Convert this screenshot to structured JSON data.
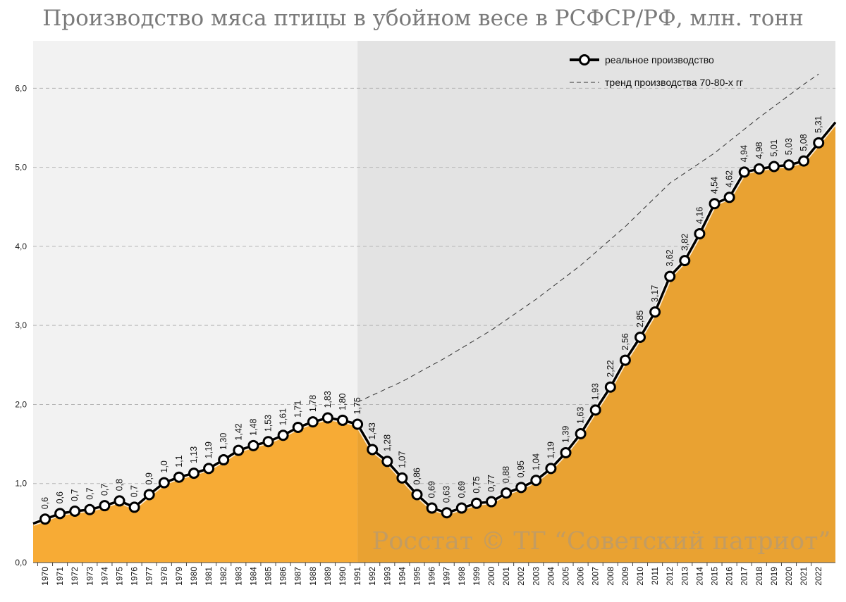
{
  "chart_data": {
    "type": "area",
    "title": "Производство мяса птицы в убойном весе в РСФСР/РФ, млн. тонн",
    "x": [
      "1970",
      "1971",
      "1972",
      "1973",
      "1974",
      "1975",
      "1976",
      "1977",
      "1978",
      "1979",
      "1980",
      "1981",
      "1982",
      "1983",
      "1984",
      "1985",
      "1986",
      "1987",
      "1988",
      "1989",
      "1990",
      "1991",
      "1992",
      "1993",
      "1994",
      "1995",
      "1996",
      "1997",
      "1998",
      "1999",
      "2000",
      "2001",
      "2002",
      "2003",
      "2004",
      "2005",
      "2006",
      "2007",
      "2008",
      "2009",
      "2010",
      "2011",
      "2012",
      "2013",
      "2014",
      "2015",
      "2016",
      "2017",
      "2018",
      "2019",
      "2020",
      "2021",
      "2022"
    ],
    "series": [
      {
        "name": "реальное производство",
        "values": [
          0.55,
          0.62,
          0.65,
          0.67,
          0.72,
          0.78,
          0.7,
          0.86,
          1.01,
          1.08,
          1.13,
          1.19,
          1.3,
          1.42,
          1.48,
          1.53,
          1.61,
          1.71,
          1.78,
          1.83,
          1.8,
          1.75,
          1.43,
          1.28,
          1.07,
          0.86,
          0.69,
          0.63,
          0.69,
          0.75,
          0.77,
          0.88,
          0.95,
          1.04,
          1.19,
          1.39,
          1.63,
          1.93,
          2.22,
          2.56,
          2.85,
          3.17,
          3.62,
          3.82,
          4.16,
          4.54,
          4.62,
          4.94,
          4.98,
          5.01,
          5.03,
          5.08,
          5.31
        ],
        "labels": [
          "0,6",
          "0,6",
          "0,7",
          "0,7",
          "0,7",
          "0,8",
          "0,7",
          "0,9",
          "1,0",
          "1,1",
          "1,13",
          "1,19",
          "1,30",
          "1,42",
          "1,48",
          "1,53",
          "1,61",
          "1,71",
          "1,78",
          "1,83",
          "1,80",
          "1,75",
          "1,43",
          "1,28",
          "1,07",
          "0,86",
          "0,69",
          "0,63",
          "0,69",
          "0,75",
          "0,77",
          "0,88",
          "0,95",
          "1,04",
          "1,19",
          "1,39",
          "1,63",
          "1,93",
          "2,22",
          "2,56",
          "2,85",
          "3,17",
          "3,62",
          "3,82",
          "4,16",
          "4,54",
          "4,62",
          "4,94",
          "4,98",
          "5,01",
          "5,03",
          "5,08",
          "5,31"
        ],
        "color": "#000000",
        "fill_colors": [
          "#f7ab35",
          "#e9a232"
        ]
      },
      {
        "name": "тренд производства 70-80-х гг",
        "style": "dashed",
        "color": "#333333",
        "x": [
          "1991",
          "1994",
          "1997",
          "2000",
          "2003",
          "2006",
          "2009",
          "2012",
          "2015",
          "2018",
          "2021",
          "2022"
        ],
        "values": [
          2.03,
          2.29,
          2.6,
          2.94,
          3.33,
          3.76,
          4.25,
          4.8,
          5.18,
          5.63,
          6.05,
          6.18
        ]
      }
    ],
    "yticks": [
      "0,0",
      "1,0",
      "2,0",
      "3,0",
      "4,0",
      "5,0",
      "6,0"
    ],
    "ylim": [
      0,
      6.6
    ],
    "grid": true,
    "legend": "top-right",
    "background": {
      "period_1_color": "#f2f2f2",
      "period_2_color": "#e3e3e3",
      "split_year": "1991"
    },
    "watermark": "Росстат © ТГ “Советский патриот”"
  }
}
